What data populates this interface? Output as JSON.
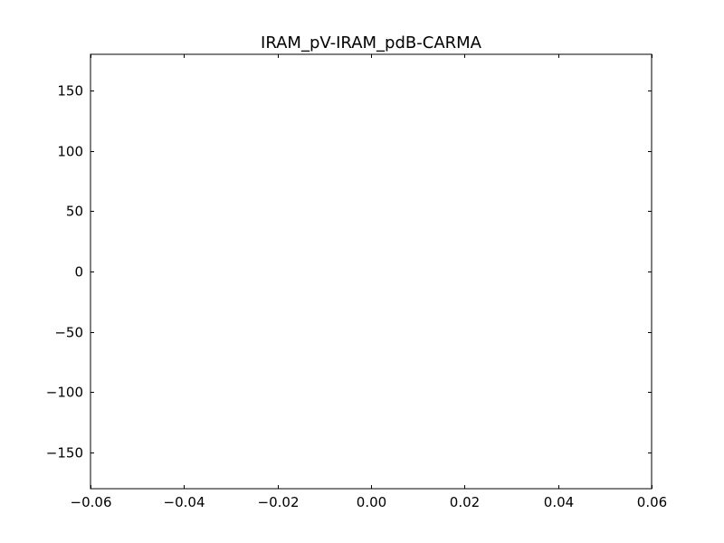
{
  "chart_data": {
    "type": "scatter",
    "title": "IRAM_pV-IRAM_pdB-CARMA",
    "xlabel": "",
    "ylabel": "",
    "xlim": [
      -0.06,
      0.06
    ],
    "ylim": [
      -180,
      180
    ],
    "x_ticks": [
      -0.06,
      -0.04,
      -0.02,
      0.0,
      0.02,
      0.04,
      0.06
    ],
    "x_tick_labels": [
      "−0.06",
      "−0.04",
      "−0.02",
      "0.00",
      "0.02",
      "0.04",
      "0.06"
    ],
    "y_ticks": [
      -150,
      -100,
      -50,
      0,
      50,
      100,
      150
    ],
    "y_tick_labels": [
      "−150",
      "−100",
      "−50",
      "0",
      "50",
      "100",
      "150"
    ],
    "grid": false,
    "series": []
  }
}
